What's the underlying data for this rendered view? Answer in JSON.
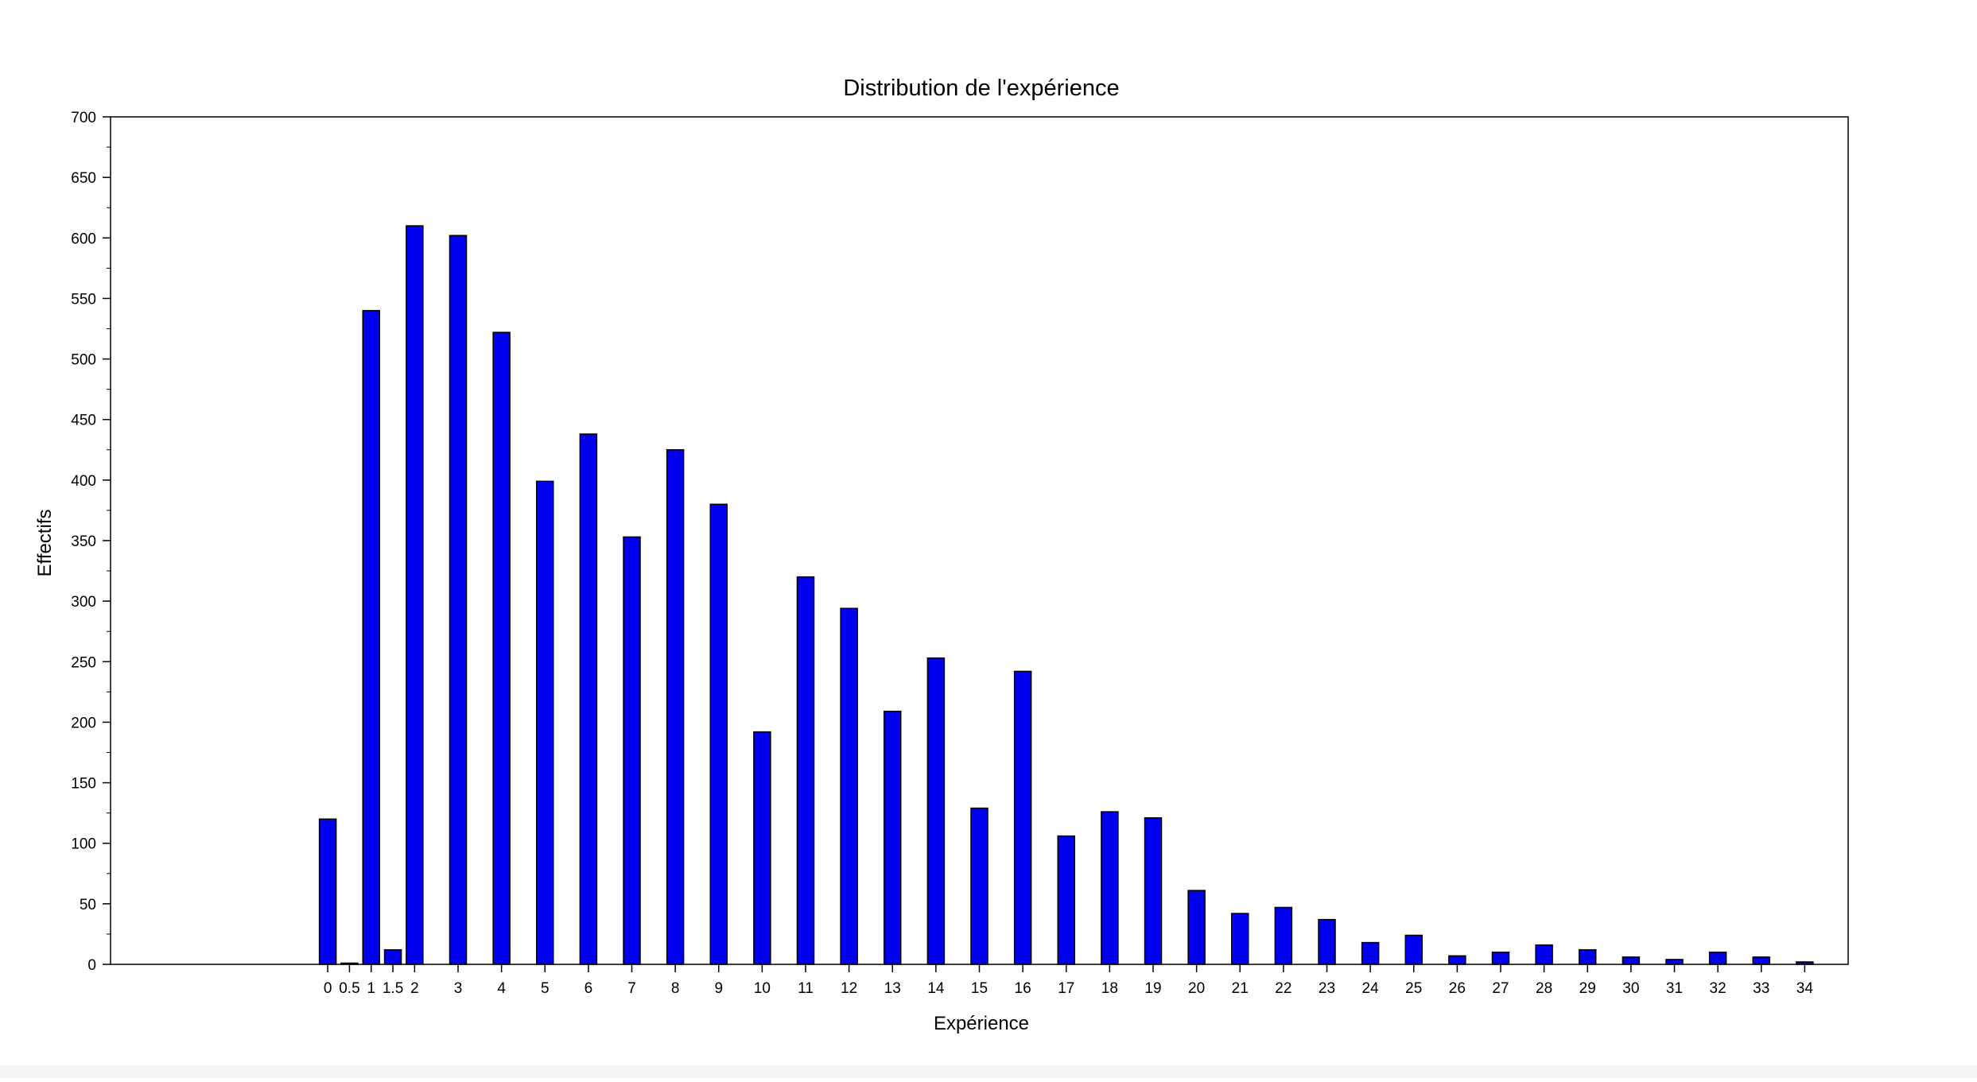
{
  "chart_data": {
    "type": "bar",
    "title": "Distribution de l'expérience",
    "xlabel": "Expérience",
    "ylabel": "Effectifs",
    "ylim": [
      0,
      700
    ],
    "yticks": [
      0,
      50,
      100,
      150,
      200,
      250,
      300,
      350,
      400,
      450,
      500,
      550,
      600,
      650,
      700
    ],
    "xlim": [
      -5,
      35
    ],
    "xticks": [
      0,
      0.5,
      1,
      1.5,
      2,
      3,
      4,
      5,
      6,
      7,
      8,
      9,
      10,
      11,
      12,
      13,
      14,
      15,
      16,
      17,
      18,
      19,
      20,
      21,
      22,
      23,
      24,
      25,
      26,
      27,
      28,
      29,
      30,
      31,
      32,
      33,
      34
    ],
    "x": [
      0,
      0.5,
      1,
      1.5,
      2,
      3,
      4,
      5,
      6,
      7,
      8,
      9,
      10,
      11,
      12,
      13,
      14,
      15,
      16,
      17,
      18,
      19,
      20,
      21,
      22,
      23,
      24,
      25,
      26,
      27,
      28,
      29,
      30,
      31,
      32,
      33,
      34
    ],
    "values": [
      120,
      1,
      540,
      12,
      610,
      602,
      522,
      399,
      438,
      353,
      425,
      380,
      192,
      320,
      294,
      209,
      253,
      129,
      242,
      106,
      126,
      121,
      61,
      42,
      47,
      37,
      18,
      24,
      7,
      10,
      16,
      12,
      6,
      4,
      10,
      6,
      2
    ],
    "bar_color": "#0000ee",
    "grid": false,
    "legend": "none"
  }
}
